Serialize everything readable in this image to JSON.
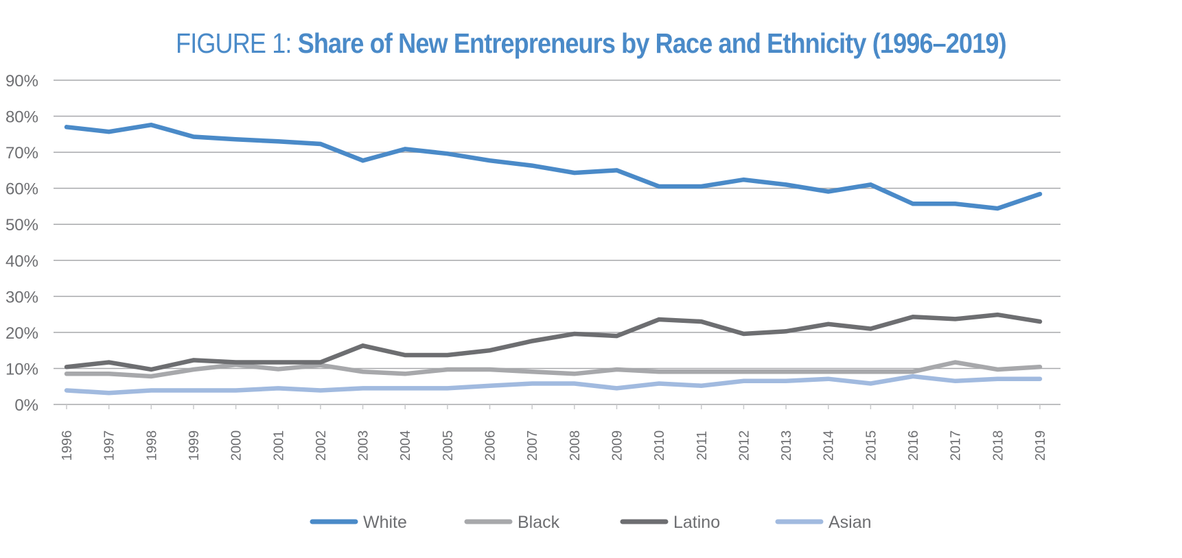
{
  "chart_data": {
    "type": "line",
    "title_prefix": "FIGURE 1:",
    "title": "Share of New Entrepreneurs by Race and Ethnicity (1996–2019)",
    "xlabel": "",
    "ylabel": "",
    "ylim": [
      0,
      90
    ],
    "yticks": [
      0,
      10,
      20,
      30,
      40,
      50,
      60,
      70,
      80,
      90
    ],
    "ytick_labels": [
      "0%",
      "10%",
      "20%",
      "30%",
      "40%",
      "50%",
      "60%",
      "70%",
      "80%",
      "90%"
    ],
    "grid": true,
    "legend_position": "bottom-center",
    "categories": [
      "1996",
      "1997",
      "1998",
      "1999",
      "2000",
      "2001",
      "2002",
      "2003",
      "2004",
      "2005",
      "2006",
      "2007",
      "2008",
      "2009",
      "2010",
      "2011",
      "2012",
      "2013",
      "2014",
      "2015",
      "2016",
      "2017",
      "2018",
      "2019"
    ],
    "series": [
      {
        "name": "White",
        "color": "#4a8ac8",
        "values": [
          77.0,
          75.7,
          77.6,
          74.3,
          73.6,
          73.0,
          72.3,
          67.7,
          70.9,
          69.6,
          67.7,
          66.3,
          64.3,
          65.0,
          60.5,
          60.5,
          62.4,
          61.0,
          59.1,
          61.0,
          55.7,
          55.7,
          54.4,
          58.4
        ]
      },
      {
        "name": "Black",
        "color": "#a7a8ab",
        "values": [
          8.5,
          8.5,
          7.8,
          9.7,
          11.0,
          9.8,
          10.9,
          9.1,
          8.5,
          9.7,
          9.7,
          9.1,
          8.5,
          9.7,
          9.1,
          9.1,
          9.1,
          9.1,
          9.1,
          9.1,
          9.1,
          11.7,
          9.7,
          10.4
        ]
      },
      {
        "name": "Latino",
        "color": "#6d6e71",
        "values": [
          10.4,
          11.7,
          9.7,
          12.3,
          11.7,
          11.7,
          11.7,
          16.3,
          13.7,
          13.7,
          15.0,
          17.6,
          19.6,
          19.0,
          23.6,
          23.0,
          19.6,
          20.3,
          22.3,
          21.0,
          24.3,
          23.7,
          24.9,
          23.0
        ]
      },
      {
        "name": "Asian",
        "color": "#a1badf",
        "values": [
          3.9,
          3.2,
          3.9,
          3.9,
          3.9,
          4.5,
          3.9,
          4.5,
          4.5,
          4.5,
          5.2,
          5.8,
          5.8,
          4.5,
          5.8,
          5.2,
          6.5,
          6.5,
          7.1,
          5.8,
          7.8,
          6.5,
          7.1,
          7.1
        ]
      }
    ]
  }
}
